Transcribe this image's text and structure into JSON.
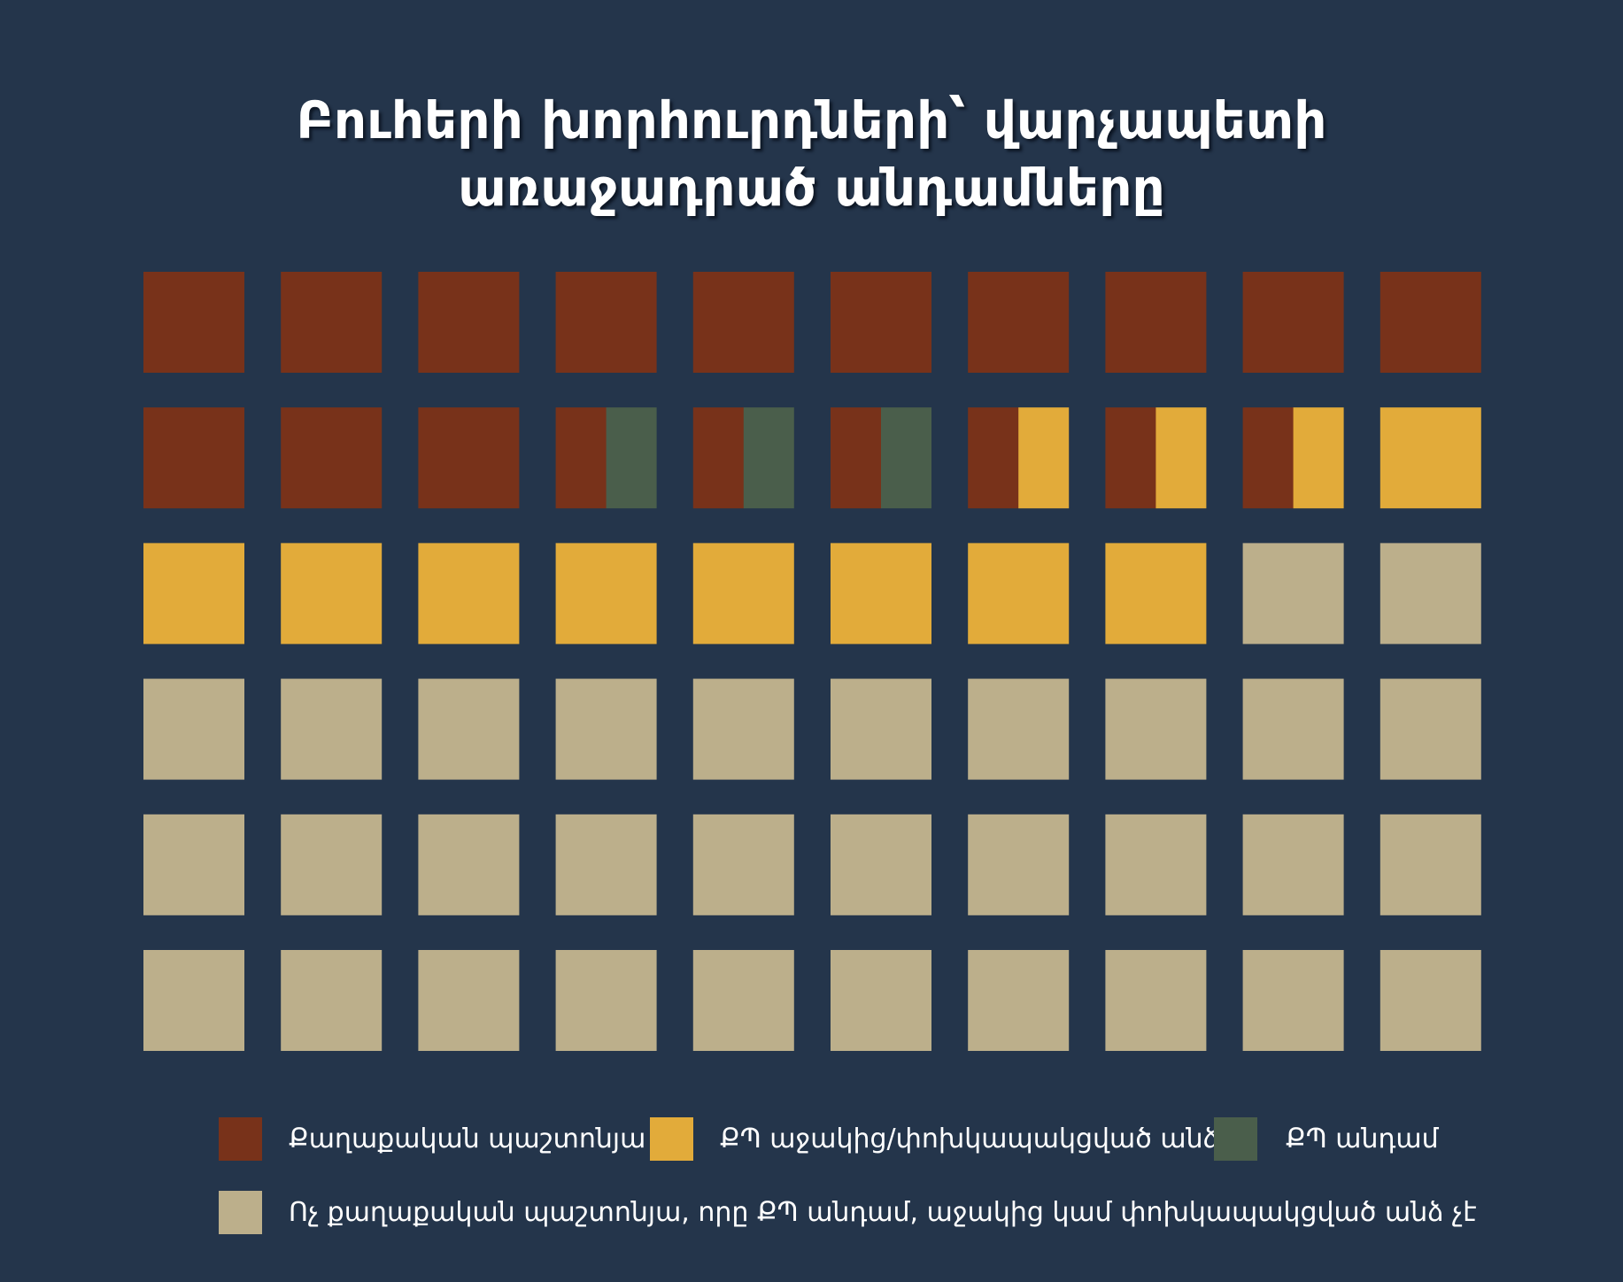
{
  "chart_data": {
    "type": "waffle",
    "title_lines": [
      "Բուհերի խորհուրդների՝ վարչապետի",
      "առաջադրած անդամները"
    ],
    "colors": {
      "political": "#78321a",
      "cp_supporter": "#e2ab3a",
      "cp_member": "#4a5e4b",
      "non_political": "#bcaf8b"
    },
    "legend": [
      {
        "key": "political",
        "label": "Քաղաքական պաշտոնյա"
      },
      {
        "key": "cp_supporter",
        "label": "ՔՊ աջակից/փոխկապակցված անձ"
      },
      {
        "key": "cp_member",
        "label": "ՔՊ անդամ"
      },
      {
        "key": "non_political",
        "label": "Ոչ քաղաքական պաշտոնյա, որը ՔՊ անդամ, աջակից կամ փոխկապակցված անձ չէ"
      }
    ],
    "rows": 6,
    "cols": 10,
    "cells": [
      [
        "political"
      ],
      [
        "political"
      ],
      [
        "political"
      ],
      [
        "political"
      ],
      [
        "political"
      ],
      [
        "political"
      ],
      [
        "political"
      ],
      [
        "political"
      ],
      [
        "political"
      ],
      [
        "political"
      ],
      [
        "political"
      ],
      [
        "political"
      ],
      [
        "political"
      ],
      [
        "political",
        "cp_member"
      ],
      [
        "political",
        "cp_member"
      ],
      [
        "political",
        "cp_member"
      ],
      [
        "political",
        "cp_supporter"
      ],
      [
        "political",
        "cp_supporter"
      ],
      [
        "political",
        "cp_supporter"
      ],
      [
        "cp_supporter"
      ],
      [
        "cp_supporter"
      ],
      [
        "cp_supporter"
      ],
      [
        "cp_supporter"
      ],
      [
        "cp_supporter"
      ],
      [
        "cp_supporter"
      ],
      [
        "cp_supporter"
      ],
      [
        "cp_supporter"
      ],
      [
        "cp_supporter"
      ],
      [
        "non_political"
      ],
      [
        "non_political"
      ],
      [
        "non_political"
      ],
      [
        "non_political"
      ],
      [
        "non_political"
      ],
      [
        "non_political"
      ],
      [
        "non_political"
      ],
      [
        "non_political"
      ],
      [
        "non_political"
      ],
      [
        "non_political"
      ],
      [
        "non_political"
      ],
      [
        "non_political"
      ],
      [
        "non_political"
      ],
      [
        "non_political"
      ],
      [
        "non_political"
      ],
      [
        "non_political"
      ],
      [
        "non_political"
      ],
      [
        "non_political"
      ],
      [
        "non_political"
      ],
      [
        "non_political"
      ],
      [
        "non_political"
      ],
      [
        "non_political"
      ],
      [
        "non_political"
      ],
      [
        "non_political"
      ],
      [
        "non_political"
      ],
      [
        "non_political"
      ],
      [
        "non_political"
      ],
      [
        "non_political"
      ],
      [
        "non_political"
      ],
      [
        "non_political"
      ],
      [
        "non_political"
      ],
      [
        "non_political"
      ]
    ],
    "totals": {
      "political": 16,
      "cp_member": 1.5,
      "cp_supporter": 10.5,
      "non_political": 32
    }
  }
}
